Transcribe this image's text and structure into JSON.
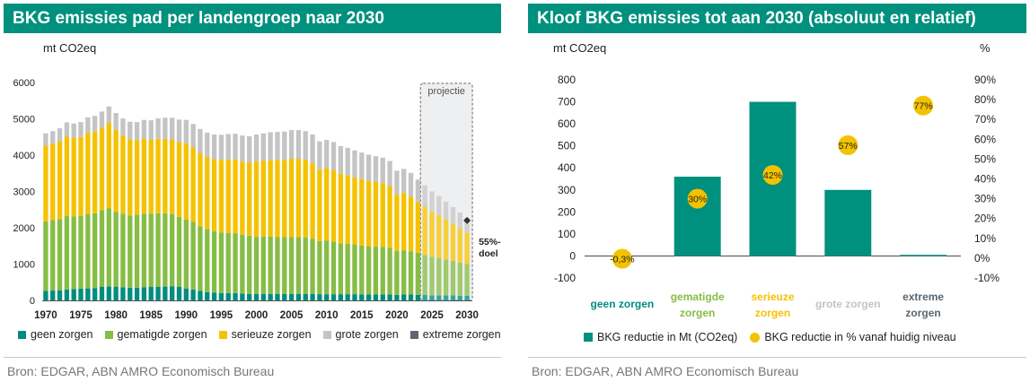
{
  "left": {
    "title": "BKG emissies pad per landengroep naar 2030",
    "unit": "mt CO2eq",
    "source": "Bron: EDGAR, ABN AMRO Economisch Bureau"
  },
  "right": {
    "title": "Kloof BKG emissies tot aan 2030 (absoluut en relatief)",
    "unit_left": "mt CO2eq",
    "unit_right": "%",
    "source": "Bron: EDGAR, ABN AMRO Economisch Bureau"
  },
  "colors": {
    "geen": "#008c7e",
    "gematigde": "#86bd45",
    "serieuze": "#f5c200",
    "grote": "#c4c4c4",
    "extreme": "#5b6670",
    "header": "#00907e",
    "dot": "#f3c200",
    "bar": "#00907e"
  },
  "chart_data": [
    {
      "type": "bar",
      "stacked": true,
      "title": "BKG emissies pad per landengroep naar 2030",
      "ylabel": "mt CO2eq",
      "ylim": [
        0,
        6000
      ],
      "yticks": [
        0,
        1000,
        2000,
        3000,
        4000,
        5000,
        6000
      ],
      "xticks": [
        1970,
        1975,
        1980,
        1985,
        1990,
        1995,
        2000,
        2005,
        2010,
        2015,
        2020,
        2025,
        2030
      ],
      "years": [
        1970,
        1971,
        1972,
        1973,
        1974,
        1975,
        1976,
        1977,
        1978,
        1979,
        1980,
        1981,
        1982,
        1983,
        1984,
        1985,
        1986,
        1987,
        1988,
        1989,
        1990,
        1991,
        1992,
        1993,
        1994,
        1995,
        1996,
        1997,
        1998,
        1999,
        2000,
        2001,
        2002,
        2003,
        2004,
        2005,
        2006,
        2007,
        2008,
        2009,
        2010,
        2011,
        2012,
        2013,
        2014,
        2015,
        2016,
        2017,
        2018,
        2019,
        2020,
        2021,
        2022,
        2023,
        2024,
        2025,
        2026,
        2027,
        2028,
        2029,
        2030
      ],
      "series": [
        {
          "name": "geen zorgen",
          "values": [
            260,
            270,
            280,
            300,
            310,
            320,
            330,
            340,
            370,
            380,
            370,
            360,
            350,
            350,
            360,
            370,
            370,
            380,
            390,
            370,
            330,
            300,
            260,
            230,
            210,
            200,
            200,
            200,
            190,
            180,
            180,
            180,
            180,
            180,
            180,
            180,
            180,
            180,
            180,
            170,
            170,
            170,
            170,
            170,
            170,
            160,
            160,
            160,
            160,
            160,
            150,
            160,
            160,
            150,
            150,
            140,
            140,
            140,
            140,
            130,
            130
          ]
        },
        {
          "name": "gematigde zorgen",
          "values": [
            1920,
            1940,
            1960,
            2020,
            2000,
            2010,
            2050,
            2060,
            2110,
            2160,
            2070,
            2030,
            1990,
            2010,
            2030,
            2020,
            2030,
            2020,
            1990,
            1930,
            1900,
            1860,
            1780,
            1730,
            1690,
            1670,
            1660,
            1640,
            1620,
            1600,
            1570,
            1580,
            1580,
            1570,
            1560,
            1560,
            1560,
            1550,
            1520,
            1460,
            1480,
            1450,
            1400,
            1390,
            1370,
            1350,
            1330,
            1320,
            1310,
            1290,
            1210,
            1220,
            1190,
            1160,
            1100,
            1060,
            1030,
            990,
            950,
            910,
            870
          ]
        },
        {
          "name": "serieuze zorgen",
          "values": [
            2080,
            2100,
            2140,
            2200,
            2160,
            2170,
            2240,
            2250,
            2280,
            2350,
            2260,
            2150,
            2100,
            2050,
            2060,
            2030,
            2050,
            2050,
            2050,
            2060,
            2100,
            2050,
            2020,
            1990,
            1990,
            2000,
            2020,
            2040,
            2010,
            2010,
            2080,
            2090,
            2110,
            2120,
            2130,
            2160,
            2160,
            2140,
            2080,
            1980,
            2000,
            1970,
            1920,
            1890,
            1850,
            1830,
            1800,
            1780,
            1760,
            1700,
            1550,
            1580,
            1510,
            1400,
            1330,
            1250,
            1180,
            1100,
            1020,
            950,
            870
          ]
        },
        {
          "name": "grote zorgen",
          "values": [
            340,
            350,
            360,
            380,
            400,
            410,
            420,
            430,
            440,
            450,
            460,
            470,
            480,
            500,
            520,
            540,
            560,
            580,
            600,
            620,
            640,
            650,
            660,
            670,
            680,
            690,
            700,
            710,
            720,
            730,
            740,
            750,
            760,
            770,
            780,
            790,
            790,
            790,
            790,
            770,
            770,
            770,
            760,
            750,
            740,
            730,
            720,
            710,
            700,
            690,
            660,
            660,
            650,
            620,
            590,
            550,
            520,
            490,
            460,
            430,
            400
          ]
        },
        {
          "name": "extreme zorgen",
          "values": [
            0,
            0,
            0,
            0,
            0,
            0,
            0,
            0,
            0,
            0,
            0,
            0,
            0,
            0,
            0,
            0,
            0,
            0,
            0,
            0,
            0,
            0,
            0,
            0,
            0,
            0,
            0,
            0,
            0,
            0,
            0,
            0,
            0,
            0,
            0,
            0,
            0,
            0,
            0,
            0,
            0,
            0,
            0,
            0,
            0,
            0,
            0,
            0,
            0,
            0,
            0,
            0,
            0,
            0,
            0,
            0,
            0,
            0,
            0,
            0,
            0
          ]
        }
      ],
      "projection_label": "projectie",
      "projection_from": 2024,
      "target": {
        "year": 2030,
        "value": 2200,
        "label_line1": "55%-",
        "label_line2": "doel"
      },
      "legend": [
        "geen zorgen",
        "gematigde zorgen",
        "serieuze zorgen",
        "grote zorgen",
        "extreme zorgen"
      ]
    },
    {
      "type": "bar",
      "title": "Kloof BKG emissies tot aan 2030 (absoluut en relatief)",
      "ylabel": "mt CO2eq",
      "ylabel_right": "%",
      "categories": [
        "geen zorgen",
        "gematigde zorgen",
        "serieuze zorgen",
        "grote zorgen",
        "extreme zorgen"
      ],
      "category_lines": [
        [
          "geen zorgen"
        ],
        [
          "gematigde",
          "zorgen"
        ],
        [
          "serieuze",
          "zorgen"
        ],
        [
          "grote zorgen"
        ],
        [
          "extreme",
          "zorgen"
        ]
      ],
      "category_colors": [
        "#008c7e",
        "#86bd45",
        "#f5c200",
        "#c4c4c4",
        "#5b6670"
      ],
      "ylim": [
        -100,
        800
      ],
      "yticks": [
        -100,
        0,
        100,
        200,
        300,
        400,
        500,
        600,
        700,
        800
      ],
      "ylim_right": [
        -10,
        90
      ],
      "yticks_right": [
        -10,
        0,
        10,
        20,
        30,
        40,
        50,
        60,
        70,
        80,
        90
      ],
      "series": [
        {
          "name": "BKG reductie in Mt (CO2eq)",
          "kind": "bar",
          "axis": "left",
          "values": [
            0,
            360,
            700,
            300,
            5
          ]
        },
        {
          "name": "BKG reductie in % vanaf huidig niveau",
          "kind": "dot",
          "axis": "right",
          "values": [
            -0.3,
            30,
            42,
            57,
            77
          ],
          "labels": [
            "-0,3%",
            "30%",
            "42%",
            "57%",
            "77%"
          ]
        }
      ],
      "legend": [
        "BKG reductie in Mt (CO2eq)",
        "BKG reductie in % vanaf huidig niveau"
      ]
    }
  ]
}
